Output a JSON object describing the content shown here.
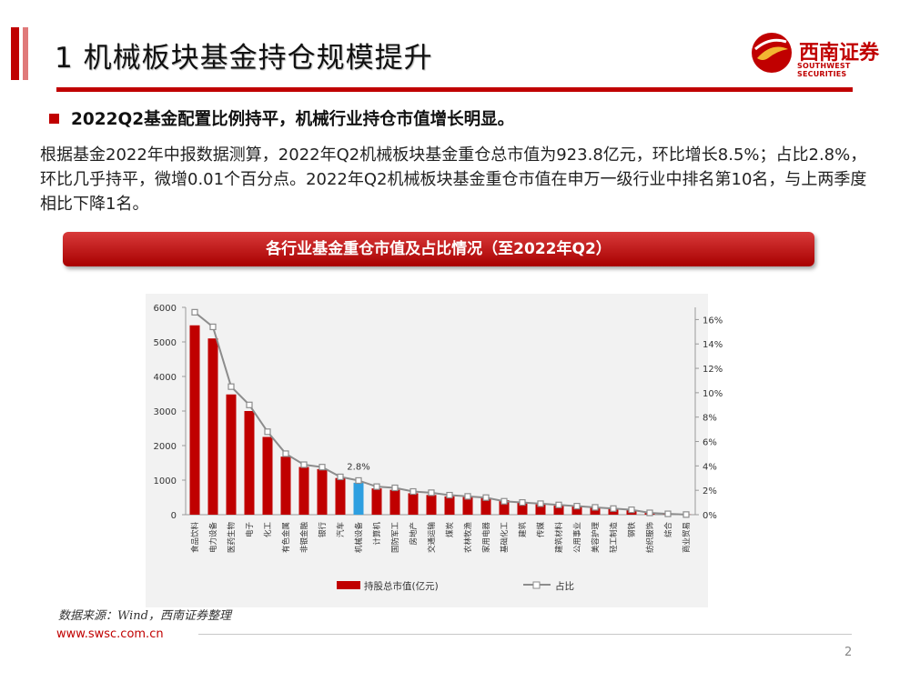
{
  "header": {
    "title": "1  机械板块基金持仓规模提升",
    "logo_text": "西南证券",
    "logo_subtext": "SOUTHWEST SECURITIES"
  },
  "content": {
    "heading": "2022Q2基金配置比例持平，机械行业持仓市值增长明显。",
    "paragraph": "根据基金2022年中报数据测算，2022年Q2机械板块基金重仓总市值为923.8亿元，环比增长8.5%；占比2.8%，环比几乎持平，微增0.01个百分点。2022年Q2机械板块基金重仓市值在申万一级行业中排名第10名，与上两季度相比下降1名。"
  },
  "chart_banner": "各行业基金重仓市值及占比情况（至2022年Q2）",
  "chart_data": {
    "type": "bar",
    "title": "各行业基金重仓市值及占比情况（至2022年Q2）",
    "categories": [
      "食品饮料",
      "电力设备",
      "医药生物",
      "电子",
      "化工",
      "有色金属",
      "非银金融",
      "银行",
      "汽车",
      "机械设备",
      "计算机",
      "国防军工",
      "房地产",
      "交通运输",
      "煤炭",
      "农林牧渔",
      "家用电器",
      "基础化工",
      "建筑",
      "传媒",
      "建筑材料",
      "公用事业",
      "美容护理",
      "轻工制造",
      "钢铁",
      "纺织服饰",
      "综合",
      "商业贸易"
    ],
    "series": [
      {
        "name": "持股总市值(亿元)",
        "axis": "left",
        "type": "bar",
        "color": "#c00000",
        "values": [
          5480,
          5100,
          3480,
          3000,
          2250,
          1680,
          1380,
          1320,
          1060,
          924,
          760,
          720,
          620,
          570,
          530,
          510,
          480,
          420,
          370,
          300,
          260,
          240,
          220,
          180,
          130,
          50,
          20,
          5
        ]
      },
      {
        "name": "占比",
        "axis": "right",
        "type": "line",
        "color": "#8c8c8c",
        "unit": "%",
        "values": [
          16.6,
          15.4,
          10.5,
          9.0,
          6.8,
          5.0,
          4.1,
          3.9,
          3.1,
          2.8,
          2.3,
          2.2,
          1.9,
          1.8,
          1.6,
          1.5,
          1.4,
          1.1,
          1.0,
          0.9,
          0.8,
          0.7,
          0.6,
          0.5,
          0.4,
          0.15,
          0.07,
          0.01
        ]
      }
    ],
    "highlight": {
      "category": "机械设备",
      "color": "#2e9fe0",
      "label": "2.8%"
    },
    "y_left": {
      "min": 0,
      "max": 6000,
      "ticks": [
        0,
        1000,
        2000,
        3000,
        4000,
        5000,
        6000
      ]
    },
    "y_right": {
      "min": 0,
      "max": 17,
      "ticks": [
        "0%",
        "2%",
        "4%",
        "6%",
        "8%",
        "10%",
        "12%",
        "14%",
        "16%"
      ]
    },
    "legend": {
      "position": "bottom",
      "bar_label": "持股总市值(亿元)",
      "line_label": "占比"
    }
  },
  "footer": {
    "source": "数据来源：Wind，西南证券整理",
    "website": "www.swsc.com.cn",
    "page_number": "2"
  },
  "colors": {
    "brand_red": "#c00000",
    "highlight_blue": "#2e9fe0",
    "line_gray": "#8c8c8c"
  }
}
